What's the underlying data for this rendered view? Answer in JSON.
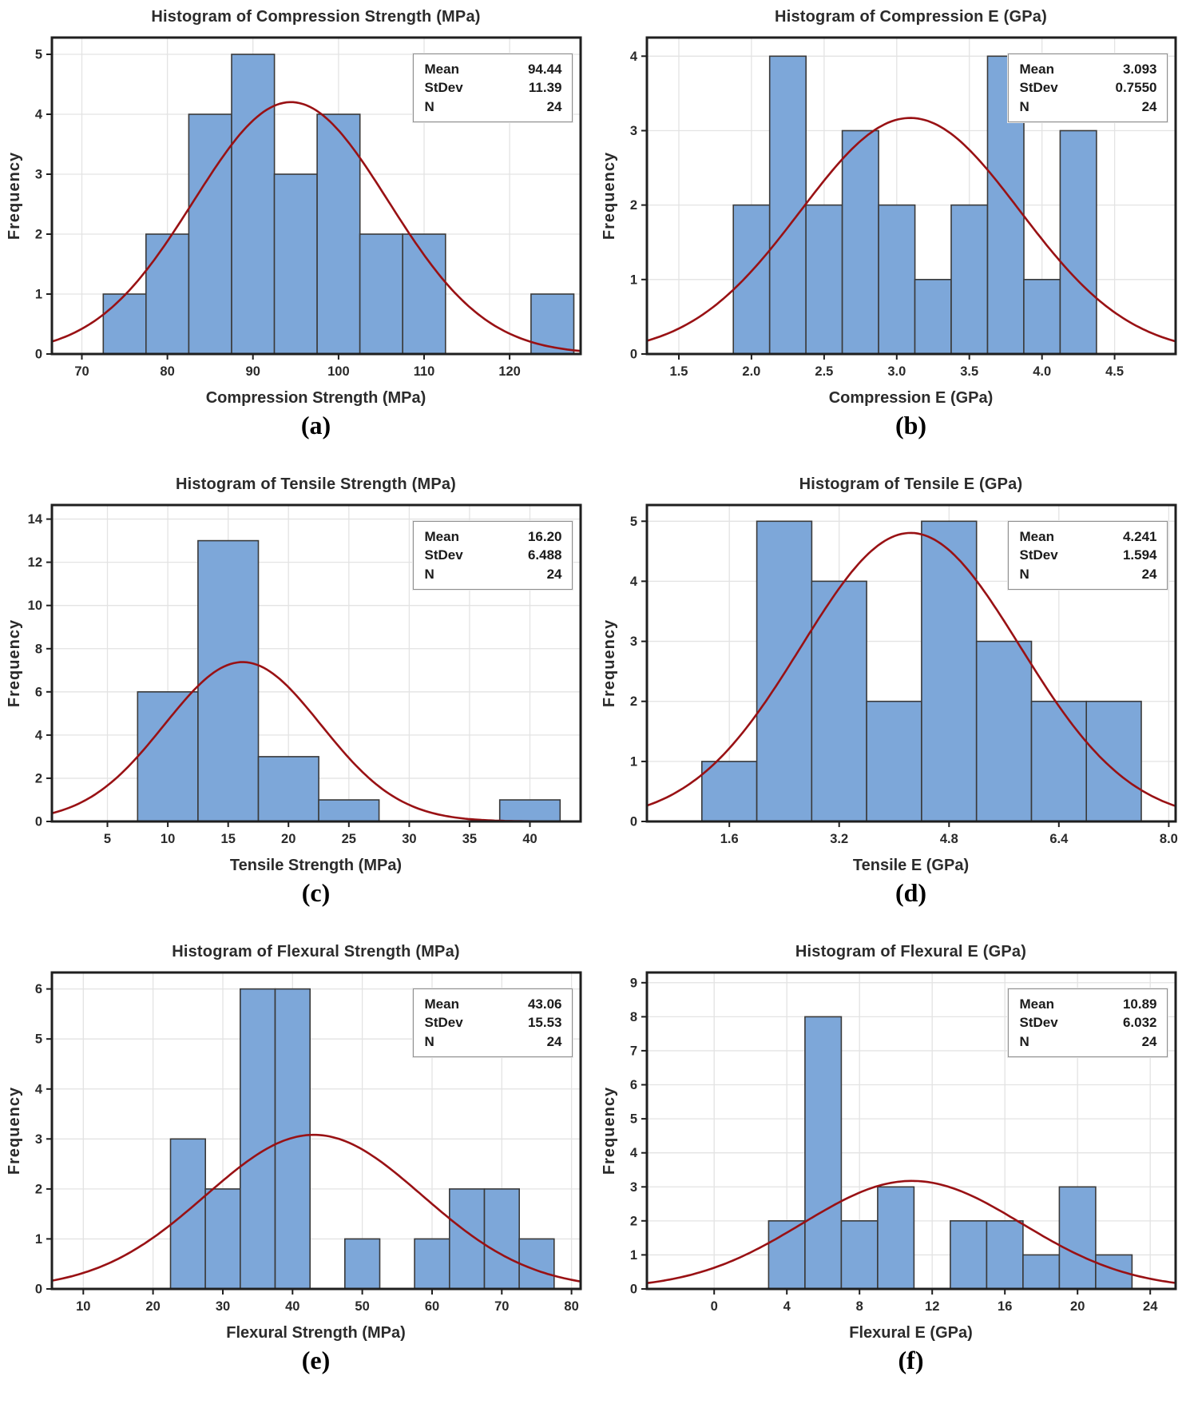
{
  "theme": {
    "bar_fill": "#7DA7D9",
    "bar_edge": "#3a3a3a",
    "curve": "#991114",
    "grid": "#e3e3e3",
    "axis": "#1f1f1f",
    "text": "#2a2a2a",
    "stats_border": "#8f8f8f"
  },
  "chart_data": [
    {
      "type": "bar",
      "subtype": "histogram-with-normal-curve",
      "panel_label": "(a)",
      "title": "Histogram of Compression Strength (MPa)",
      "xlabel": "Compression Strength (MPa)",
      "ylabel": "Frequency",
      "bins": {
        "start": 72.5,
        "width": 5
      },
      "frequencies": [
        1,
        2,
        4,
        5,
        3,
        4,
        2,
        2,
        0,
        0,
        1
      ],
      "x_ticks": [
        70,
        80,
        90,
        100,
        110,
        120
      ],
      "x_tick_labels": [
        "70",
        "80",
        "90",
        "100",
        "110",
        "120"
      ],
      "y_ticks": [
        0,
        1,
        2,
        3,
        4,
        5
      ],
      "xlim": [
        66.5,
        128.3
      ],
      "ylim": [
        0,
        5.28
      ],
      "normal_curve": {
        "mean": 94.44,
        "stdev": 11.39,
        "n": 24
      },
      "stats_labels": [
        "Mean",
        "StDev",
        "N"
      ],
      "stats_values": [
        "94.44",
        "11.39",
        "24"
      ]
    },
    {
      "type": "bar",
      "subtype": "histogram-with-normal-curve",
      "panel_label": "(b)",
      "title": "Histogram of Compression E (GPa)",
      "xlabel": "Compression E (GPa)",
      "ylabel": "Frequency",
      "bins": {
        "start": 1.875,
        "width": 0.25
      },
      "frequencies": [
        2,
        4,
        2,
        3,
        2,
        1,
        2,
        4,
        1,
        3
      ],
      "x_ticks": [
        1.5,
        2.0,
        2.5,
        3.0,
        3.5,
        4.0,
        4.5
      ],
      "x_tick_labels": [
        "1.5",
        "2.0",
        "2.5",
        "3.0",
        "3.5",
        "4.0",
        "4.5"
      ],
      "y_ticks": [
        0,
        1,
        2,
        3,
        4
      ],
      "xlim": [
        1.28,
        4.92
      ],
      "ylim": [
        0,
        4.25
      ],
      "normal_curve": {
        "mean": 3.093,
        "stdev": 0.755,
        "n": 24
      },
      "stats_labels": [
        "Mean",
        "StDev",
        "N"
      ],
      "stats_values": [
        "3.093",
        "0.7550",
        "24"
      ]
    },
    {
      "type": "bar",
      "subtype": "histogram-with-normal-curve",
      "panel_label": "(c)",
      "title": "Histogram of Tensile Strength (MPa)",
      "xlabel": "Tensile Strength (MPa)",
      "ylabel": "Frequency",
      "bins": {
        "start": 7.5,
        "width": 5
      },
      "frequencies": [
        6,
        13,
        3,
        1,
        0,
        0,
        1
      ],
      "x_ticks": [
        5,
        10,
        15,
        20,
        25,
        30,
        35,
        40
      ],
      "x_tick_labels": [
        "5",
        "10",
        "15",
        "20",
        "25",
        "30",
        "35",
        "40"
      ],
      "y_ticks": [
        0,
        2,
        4,
        6,
        8,
        10,
        12,
        14
      ],
      "xlim": [
        0.4,
        44.2
      ],
      "ylim": [
        0,
        14.65
      ],
      "normal_curve": {
        "mean": 16.2,
        "stdev": 6.488,
        "n": 24
      },
      "stats_labels": [
        "Mean",
        "StDev",
        "N"
      ],
      "stats_values": [
        "16.20",
        "6.488",
        "24"
      ]
    },
    {
      "type": "bar",
      "subtype": "histogram-with-normal-curve",
      "panel_label": "(d)",
      "title": "Histogram of Tensile E (GPa)",
      "xlabel": "Tensile E (GPa)",
      "ylabel": "Frequency",
      "bins": {
        "start": 1.2,
        "width": 0.8
      },
      "frequencies": [
        1,
        5,
        4,
        2,
        5,
        3,
        2,
        2
      ],
      "x_ticks": [
        1.6,
        3.2,
        4.8,
        6.4,
        8.0
      ],
      "x_tick_labels": [
        "1.6",
        "3.2",
        "4.8",
        "6.4",
        "8.0"
      ],
      "y_ticks": [
        0,
        1,
        2,
        3,
        4,
        5
      ],
      "xlim": [
        0.4,
        8.1
      ],
      "ylim": [
        0,
        5.27
      ],
      "normal_curve": {
        "mean": 4.241,
        "stdev": 1.594,
        "n": 24
      },
      "stats_labels": [
        "Mean",
        "StDev",
        "N"
      ],
      "stats_values": [
        "4.241",
        "1.594",
        "24"
      ]
    },
    {
      "type": "bar",
      "subtype": "histogram-with-normal-curve",
      "panel_label": "(e)",
      "title": "Histogram of Flexural Strength (MPa)",
      "xlabel": "Flexural Strength (MPa)",
      "ylabel": "Frequency",
      "bins": {
        "start": 22.5,
        "width": 5
      },
      "frequencies": [
        3,
        2,
        6,
        6,
        0,
        1,
        0,
        1,
        2,
        2,
        1
      ],
      "x_ticks": [
        10,
        20,
        30,
        40,
        50,
        60,
        70,
        80
      ],
      "x_tick_labels": [
        "10",
        "20",
        "30",
        "40",
        "50",
        "60",
        "70",
        "80"
      ],
      "y_ticks": [
        0,
        1,
        2,
        3,
        4,
        5,
        6
      ],
      "xlim": [
        5.5,
        81.3
      ],
      "ylim": [
        0,
        6.33
      ],
      "normal_curve": {
        "mean": 43.06,
        "stdev": 15.53,
        "n": 24
      },
      "stats_labels": [
        "Mean",
        "StDev",
        "N"
      ],
      "stats_values": [
        "43.06",
        "15.53",
        "24"
      ]
    },
    {
      "type": "bar",
      "subtype": "histogram-with-normal-curve",
      "panel_label": "(f)",
      "title": "Histogram of Flexural E (GPa)",
      "xlabel": "Flexural E (GPa)",
      "ylabel": "Frequency",
      "bins": {
        "start": 3,
        "width": 2
      },
      "frequencies": [
        2,
        8,
        2,
        3,
        0,
        2,
        2,
        1,
        3,
        1
      ],
      "x_ticks": [
        0,
        4,
        8,
        12,
        16,
        20,
        24
      ],
      "x_tick_labels": [
        "0",
        "4",
        "8",
        "12",
        "16",
        "20",
        "24"
      ],
      "y_ticks": [
        0,
        1,
        2,
        3,
        4,
        5,
        6,
        7,
        8,
        9
      ],
      "xlim": [
        -3.7,
        25.4
      ],
      "ylim": [
        0,
        9.3
      ],
      "normal_curve": {
        "mean": 10.89,
        "stdev": 6.032,
        "n": 24
      },
      "stats_labels": [
        "Mean",
        "StDev",
        "N"
      ],
      "stats_values": [
        "10.89",
        "6.032",
        "24"
      ]
    }
  ]
}
